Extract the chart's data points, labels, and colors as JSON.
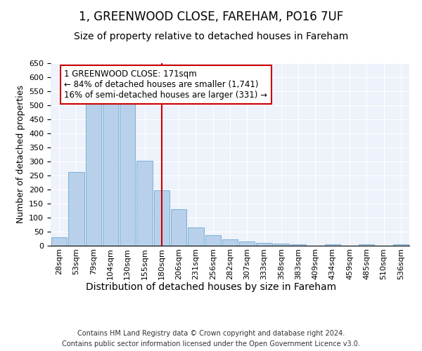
{
  "title": "1, GREENWOOD CLOSE, FAREHAM, PO16 7UF",
  "subtitle": "Size of property relative to detached houses in Fareham",
  "xlabel": "Distribution of detached houses by size in Fareham",
  "ylabel": "Number of detached properties",
  "categories": [
    "28sqm",
    "53sqm",
    "79sqm",
    "104sqm",
    "130sqm",
    "155sqm",
    "180sqm",
    "206sqm",
    "231sqm",
    "256sqm",
    "282sqm",
    "307sqm",
    "333sqm",
    "358sqm",
    "383sqm",
    "409sqm",
    "434sqm",
    "459sqm",
    "485sqm",
    "510sqm",
    "536sqm"
  ],
  "values": [
    30,
    262,
    511,
    511,
    508,
    302,
    197,
    131,
    65,
    37,
    22,
    15,
    10,
    8,
    5,
    0,
    5,
    0,
    5,
    0,
    5
  ],
  "bar_color": "#b8d0ea",
  "bar_edgecolor": "#6aaad4",
  "vline_color": "#cc0000",
  "annotation_line1": "1 GREENWOOD CLOSE: 171sqm",
  "annotation_line2": "← 84% of detached houses are smaller (1,741)",
  "annotation_line3": "16% of semi-detached houses are larger (331) →",
  "annotation_box_facecolor": "#ffffff",
  "annotation_box_edgecolor": "#cc0000",
  "ylim": [
    0,
    650
  ],
  "yticks": [
    0,
    50,
    100,
    150,
    200,
    250,
    300,
    350,
    400,
    450,
    500,
    550,
    600,
    650
  ],
  "footer_line1": "Contains HM Land Registry data © Crown copyright and database right 2024.",
  "footer_line2": "Contains public sector information licensed under the Open Government Licence v3.0.",
  "bg_color": "#eef2fa",
  "grid_color": "#ffffff",
  "title_fontsize": 12,
  "subtitle_fontsize": 10,
  "xlabel_fontsize": 10,
  "ylabel_fontsize": 9,
  "tick_fontsize": 8,
  "annotation_fontsize": 8.5,
  "footer_fontsize": 7
}
